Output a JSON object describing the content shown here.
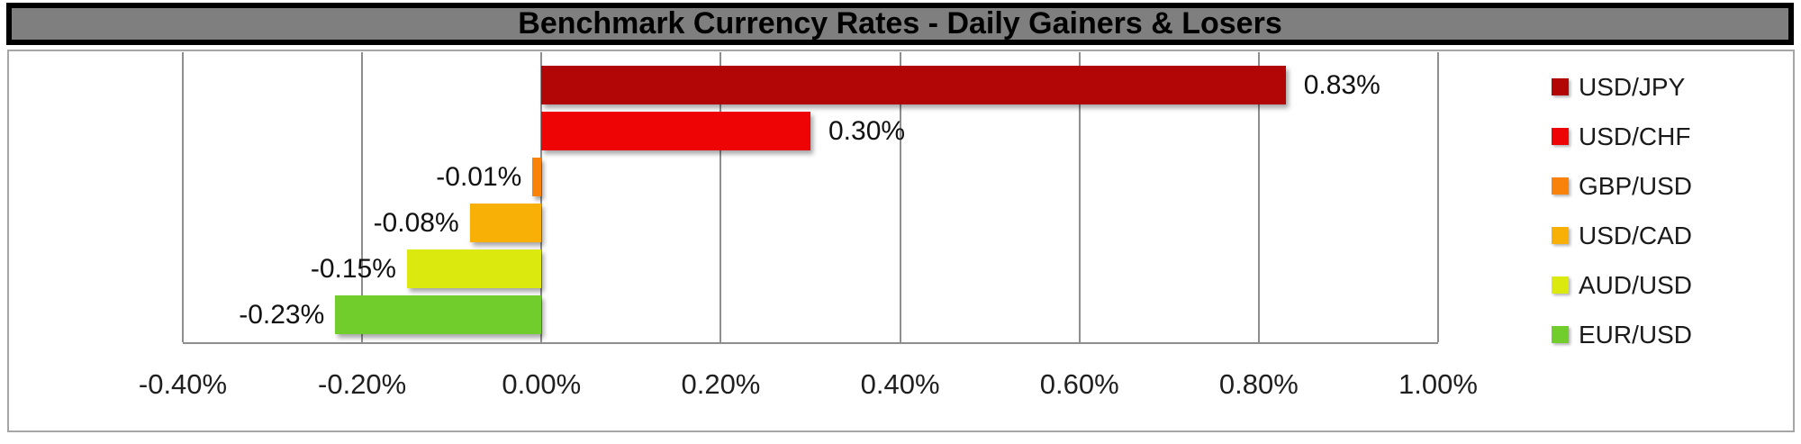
{
  "colors": {
    "title_bar_bg": "#7F7F7F",
    "title_border": "#000000",
    "title_text": "#000000",
    "frame_border": "#A6A6A6",
    "gridline": "#8E8E8E"
  },
  "chart_data": {
    "type": "bar",
    "orientation": "horizontal",
    "title": "Benchmark Currency Rates - Daily Gainers & Losers",
    "series": [
      {
        "name": "USD/JPY",
        "value": 0.83,
        "label": "0.83%",
        "color": "#B20505"
      },
      {
        "name": "USD/CHF",
        "value": 0.3,
        "label": "0.30%",
        "color": "#EE0404"
      },
      {
        "name": "GBP/USD",
        "value": -0.01,
        "label": "-0.01%",
        "color": "#F8820A"
      },
      {
        "name": "USD/CAD",
        "value": -0.08,
        "label": "-0.08%",
        "color": "#F9B006"
      },
      {
        "name": "AUD/USD",
        "value": -0.15,
        "label": "-0.15%",
        "color": "#DCE90F"
      },
      {
        "name": "EUR/USD",
        "value": -0.23,
        "label": "-0.23%",
        "color": "#70CD2B"
      }
    ],
    "xlim": [
      -0.4,
      1.0
    ],
    "x_ticks": [
      "-0.40%",
      "-0.20%",
      "0.00%",
      "0.20%",
      "0.40%",
      "0.60%",
      "0.80%",
      "1.00%"
    ],
    "xlabel": "",
    "ylabel": "",
    "grid": true,
    "legend_position": "right",
    "value_labels": "outside-end"
  }
}
